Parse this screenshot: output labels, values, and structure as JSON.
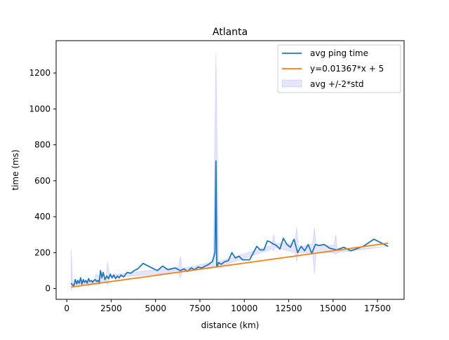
{
  "chart_data": {
    "type": "line",
    "title": "Atlanta",
    "xlabel": "distance (km)",
    "ylabel": "time (ms)",
    "xlim": [
      -600,
      19000
    ],
    "ylim": [
      -60,
      1380
    ],
    "xticks": [
      0,
      2500,
      5000,
      7500,
      10000,
      12500,
      15000,
      17500
    ],
    "yticks": [
      0,
      200,
      400,
      600,
      800,
      1000,
      1200
    ],
    "grid": false,
    "legend_position": "top-right",
    "series": [
      {
        "name": "avg ping time",
        "kind": "line",
        "color": "#1f77b4",
        "x": [
          250,
          320,
          400,
          480,
          560,
          620,
          700,
          780,
          850,
          930,
          1000,
          1080,
          1150,
          1230,
          1300,
          1380,
          1450,
          1530,
          1600,
          1680,
          1750,
          1830,
          1900,
          1980,
          2050,
          2150,
          2250,
          2350,
          2450,
          2550,
          2650,
          2750,
          2850,
          2950,
          3050,
          3200,
          3400,
          3600,
          3800,
          4000,
          4300,
          4700,
          5100,
          5400,
          5700,
          6100,
          6400,
          6600,
          6800,
          7000,
          7200,
          7400,
          7600,
          7800,
          8000,
          8200,
          8350,
          8400,
          8450,
          8550,
          8700,
          8900,
          9100,
          9300,
          9500,
          9700,
          9900,
          10300,
          10700,
          10900,
          11100,
          11300,
          11450,
          11600,
          11800,
          12000,
          12200,
          12400,
          12600,
          12800,
          13000,
          13200,
          13400,
          13600,
          13800,
          14000,
          14200,
          14500,
          14800,
          15200,
          15600,
          16000,
          16700,
          17300,
          18100
        ],
        "y": [
          30,
          20,
          15,
          50,
          25,
          45,
          30,
          60,
          25,
          50,
          35,
          45,
          30,
          55,
          40,
          45,
          35,
          45,
          50,
          40,
          45,
          35,
          100,
          60,
          90,
          50,
          70,
          55,
          80,
          60,
          75,
          55,
          70,
          60,
          75,
          65,
          90,
          85,
          100,
          110,
          140,
          120,
          100,
          125,
          105,
          115,
          100,
          110,
          95,
          115,
          105,
          120,
          115,
          125,
          135,
          150,
          200,
          710,
          120,
          145,
          135,
          150,
          155,
          200,
          170,
          180,
          160,
          160,
          235,
          215,
          215,
          265,
          260,
          250,
          240,
          220,
          280,
          245,
          230,
          275,
          200,
          235,
          210,
          245,
          195,
          245,
          240,
          245,
          225,
          215,
          230,
          210,
          235,
          275,
          235
        ]
      },
      {
        "name": "y=0.01367*x + 5",
        "kind": "line",
        "color": "#ff7f0e",
        "x": [
          250,
          18100
        ],
        "y": [
          8.4,
          252.4
        ]
      },
      {
        "name": "avg +/-2*std",
        "kind": "band",
        "color": "#0000ff",
        "opacity": 0.1,
        "x": [
          250,
          330,
          1550,
          1650,
          2200,
          2300,
          2400,
          6300,
          6400,
          6500,
          8250,
          8400,
          8550,
          11550,
          11650,
          11750,
          12850,
          12950,
          13050,
          13850,
          13950,
          14050,
          15050,
          15150,
          15250,
          18100
        ],
        "upper": [
          220,
          30,
          45,
          80,
          45,
          150,
          75,
          120,
          180,
          110,
          150,
          1310,
          150,
          240,
          300,
          250,
          250,
          340,
          230,
          250,
          340,
          240,
          240,
          300,
          210,
          235
        ],
        "lower": [
          -10,
          20,
          30,
          20,
          40,
          20,
          60,
          90,
          60,
          100,
          120,
          120,
          120,
          220,
          210,
          230,
          200,
          150,
          200,
          200,
          80,
          200,
          200,
          190,
          200,
          235
        ]
      }
    ]
  }
}
